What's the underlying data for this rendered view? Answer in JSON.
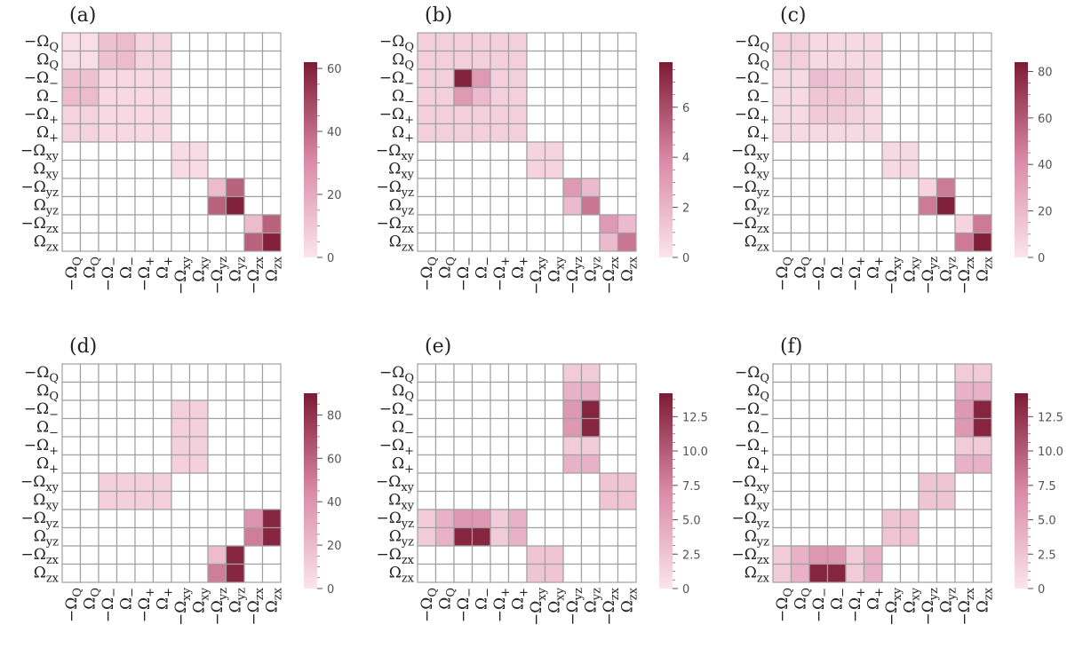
{
  "figure": {
    "colormap": {
      "low": "#fbe4ec",
      "mid": "#d98aa6",
      "high": "#7d1a34",
      "grid": "#a0a0a0"
    }
  },
  "chart_data": [
    {
      "type": "heatmap",
      "panel_label": "(a)",
      "tick_labels": [
        "−ΩQ",
        "ΩQ",
        "−Ω−",
        "Ω−",
        "−Ω+",
        "Ω+",
        "−Ωxy",
        "Ωxy",
        "−Ωyz",
        "Ωyz",
        "−Ωzx",
        "Ωzx"
      ],
      "vmin": 0,
      "vmax": 62,
      "colorbar_ticks": [
        0,
        20,
        40,
        60
      ],
      "colorbar_tick_labels": [
        "0",
        "20",
        "40",
        "60"
      ],
      "matrix": [
        [
          2,
          2,
          12,
          14,
          6,
          6,
          0,
          0,
          0,
          0,
          0,
          0
        ],
        [
          2,
          2,
          12,
          14,
          6,
          6,
          0,
          0,
          0,
          0,
          0,
          0
        ],
        [
          12,
          12,
          4,
          4,
          4,
          4,
          0,
          0,
          0,
          0,
          0,
          0
        ],
        [
          14,
          14,
          4,
          4,
          4,
          4,
          0,
          0,
          0,
          0,
          0,
          0
        ],
        [
          6,
          6,
          4,
          4,
          4,
          4,
          0,
          0,
          0,
          0,
          0,
          0
        ],
        [
          6,
          6,
          4,
          4,
          4,
          4,
          0,
          0,
          0,
          0,
          0,
          0
        ],
        [
          0,
          0,
          0,
          0,
          0,
          0,
          3,
          3,
          0,
          0,
          0,
          0
        ],
        [
          0,
          0,
          0,
          0,
          0,
          0,
          3,
          3,
          0,
          0,
          0,
          0
        ],
        [
          0,
          0,
          0,
          0,
          0,
          0,
          0,
          0,
          14,
          42,
          0,
          0
        ],
        [
          0,
          0,
          0,
          0,
          0,
          0,
          0,
          0,
          42,
          60,
          0,
          0
        ],
        [
          0,
          0,
          0,
          0,
          0,
          0,
          0,
          0,
          0,
          0,
          14,
          42
        ],
        [
          0,
          0,
          0,
          0,
          0,
          0,
          0,
          0,
          0,
          0,
          42,
          60
        ]
      ]
    },
    {
      "type": "heatmap",
      "panel_label": "(b)",
      "tick_labels": [
        "−ΩQ",
        "ΩQ",
        "−Ω−",
        "Ω−",
        "−Ω+",
        "Ω+",
        "−Ωxy",
        "Ωxy",
        "−Ωyz",
        "Ωyz",
        "−Ωzx",
        "Ωzx"
      ],
      "vmin": 0,
      "vmax": 7.8,
      "colorbar_ticks": [
        0,
        2,
        4,
        6
      ],
      "colorbar_tick_labels": [
        "0",
        "2",
        "4",
        "6"
      ],
      "matrix": [
        [
          0.9,
          0.9,
          0.9,
          0.9,
          0.9,
          0.9,
          0,
          0,
          0,
          0,
          0,
          0
        ],
        [
          0.9,
          0.9,
          0.9,
          0.9,
          0.9,
          0.9,
          0,
          0,
          0,
          0,
          0,
          0
        ],
        [
          0.9,
          0.9,
          7.5,
          3.2,
          0.9,
          0.9,
          0,
          0,
          0,
          0,
          0,
          0
        ],
        [
          0.9,
          0.9,
          3.2,
          1.8,
          0.9,
          0.9,
          0,
          0,
          0,
          0,
          0,
          0
        ],
        [
          0.9,
          0.9,
          0.9,
          0.9,
          0.9,
          0.9,
          0,
          0,
          0,
          0,
          0,
          0
        ],
        [
          0.9,
          0.9,
          0.9,
          0.9,
          0.9,
          0.9,
          0,
          0,
          0,
          0,
          0,
          0
        ],
        [
          0,
          0,
          0,
          0,
          0,
          0,
          0.7,
          0.7,
          0,
          0,
          0,
          0
        ],
        [
          0,
          0,
          0,
          0,
          0,
          0,
          0.7,
          0.7,
          0,
          0,
          0,
          0
        ],
        [
          0,
          0,
          0,
          0,
          0,
          0,
          0,
          0,
          3.2,
          1.8,
          0,
          0
        ],
        [
          0,
          0,
          0,
          0,
          0,
          0,
          0,
          0,
          1.8,
          4.6,
          0,
          0
        ],
        [
          0,
          0,
          0,
          0,
          0,
          0,
          0,
          0,
          0,
          0,
          3.2,
          1.8
        ],
        [
          0,
          0,
          0,
          0,
          0,
          0,
          0,
          0,
          0,
          0,
          1.8,
          4.6
        ]
      ]
    },
    {
      "type": "heatmap",
      "panel_label": "(c)",
      "tick_labels": [
        "−ΩQ",
        "ΩQ",
        "−Ω−",
        "Ω−",
        "−Ω+",
        "Ω+",
        "−Ωxy",
        "Ωxy",
        "−Ωyz",
        "Ωyz",
        "−Ωzx",
        "Ωzx"
      ],
      "vmin": 0,
      "vmax": 84,
      "colorbar_ticks": [
        0,
        20,
        40,
        60,
        80
      ],
      "colorbar_tick_labels": [
        "0",
        "20",
        "40",
        "60",
        "80"
      ],
      "matrix": [
        [
          10,
          10,
          5,
          5,
          5,
          5,
          0,
          0,
          0,
          0,
          0,
          0
        ],
        [
          10,
          10,
          5,
          5,
          5,
          5,
          0,
          0,
          0,
          0,
          0,
          0
        ],
        [
          5,
          5,
          18,
          14,
          12,
          5,
          0,
          0,
          0,
          0,
          0,
          0
        ],
        [
          5,
          5,
          14,
          14,
          12,
          5,
          0,
          0,
          0,
          0,
          0,
          0
        ],
        [
          5,
          5,
          12,
          12,
          9,
          5,
          0,
          0,
          0,
          0,
          0,
          0
        ],
        [
          5,
          5,
          5,
          5,
          5,
          5,
          0,
          0,
          0,
          0,
          0,
          0
        ],
        [
          0,
          0,
          0,
          0,
          0,
          0,
          5,
          5,
          0,
          0,
          0,
          0
        ],
        [
          0,
          0,
          0,
          0,
          0,
          0,
          5,
          5,
          0,
          0,
          0,
          0
        ],
        [
          0,
          0,
          0,
          0,
          0,
          0,
          0,
          0,
          8,
          48,
          0,
          0
        ],
        [
          0,
          0,
          0,
          0,
          0,
          0,
          0,
          0,
          48,
          82,
          0,
          0
        ],
        [
          0,
          0,
          0,
          0,
          0,
          0,
          0,
          0,
          0,
          0,
          8,
          48
        ],
        [
          0,
          0,
          0,
          0,
          0,
          0,
          0,
          0,
          0,
          0,
          48,
          82
        ]
      ]
    },
    {
      "type": "heatmap",
      "panel_label": "(d)",
      "tick_labels": [
        "−ΩQ",
        "ΩQ",
        "−Ω−",
        "Ω−",
        "−Ω+",
        "Ω+",
        "−Ωxy",
        "Ωxy",
        "−Ωyz",
        "Ωyz",
        "−Ωzx",
        "Ωzx"
      ],
      "vmin": 0,
      "vmax": 90,
      "colorbar_ticks": [
        0,
        20,
        40,
        60,
        80
      ],
      "colorbar_tick_labels": [
        "0",
        "20",
        "40",
        "60",
        "80"
      ],
      "matrix": [
        [
          0,
          0,
          0,
          0,
          0,
          0,
          0,
          0,
          0,
          0,
          0,
          0
        ],
        [
          0,
          0,
          0,
          0,
          0,
          0,
          0,
          0,
          0,
          0,
          0,
          0
        ],
        [
          0,
          0,
          0,
          0,
          0,
          0,
          10,
          10,
          0,
          0,
          0,
          0
        ],
        [
          0,
          0,
          0,
          0,
          0,
          0,
          10,
          10,
          0,
          0,
          0,
          0
        ],
        [
          0,
          0,
          0,
          0,
          0,
          0,
          10,
          10,
          0,
          0,
          0,
          0
        ],
        [
          0,
          0,
          0,
          0,
          0,
          0,
          10,
          10,
          0,
          0,
          0,
          0
        ],
        [
          0,
          0,
          10,
          10,
          10,
          10,
          0,
          0,
          0,
          0,
          0,
          0
        ],
        [
          0,
          0,
          10,
          10,
          10,
          10,
          0,
          0,
          0,
          0,
          0,
          0
        ],
        [
          0,
          0,
          0,
          0,
          0,
          0,
          0,
          0,
          0,
          0,
          40,
          85
        ],
        [
          0,
          0,
          0,
          0,
          0,
          0,
          0,
          0,
          0,
          0,
          50,
          85
        ],
        [
          0,
          0,
          0,
          0,
          0,
          0,
          0,
          0,
          20,
          85,
          0,
          0
        ],
        [
          0,
          0,
          0,
          0,
          0,
          0,
          0,
          0,
          50,
          85,
          0,
          0
        ]
      ]
    },
    {
      "type": "heatmap",
      "panel_label": "(e)",
      "tick_labels": [
        "−ΩQ",
        "ΩQ",
        "−Ω−",
        "Ω−",
        "−Ω+",
        "Ω+",
        "−Ωxy",
        "Ωxy",
        "−Ωyz",
        "Ωyz",
        "−Ωzx",
        "Ωzx"
      ],
      "vmin": 0,
      "vmax": 14.2,
      "colorbar_ticks": [
        0,
        2.5,
        5,
        7.5,
        10,
        12.5
      ],
      "colorbar_tick_labels": [
        "0",
        "2.5",
        "5.0",
        "7.5",
        "10.0",
        "12.5"
      ],
      "matrix": [
        [
          0,
          0,
          0,
          0,
          0,
          0,
          0,
          0,
          2,
          2,
          0,
          0
        ],
        [
          0,
          0,
          0,
          0,
          0,
          0,
          0,
          0,
          4,
          4,
          0,
          0
        ],
        [
          0,
          0,
          0,
          0,
          0,
          0,
          0,
          0,
          6,
          13.5,
          0,
          0
        ],
        [
          0,
          0,
          0,
          0,
          0,
          0,
          0,
          0,
          6,
          13.5,
          0,
          0
        ],
        [
          0,
          0,
          0,
          0,
          0,
          0,
          0,
          0,
          2,
          2,
          0,
          0
        ],
        [
          0,
          0,
          0,
          0,
          0,
          0,
          0,
          0,
          4,
          4,
          0,
          0
        ],
        [
          0,
          0,
          0,
          0,
          0,
          0,
          0,
          0,
          0,
          0,
          2.5,
          2.5
        ],
        [
          0,
          0,
          0,
          0,
          0,
          0,
          0,
          0,
          0,
          0,
          2.5,
          2.5
        ],
        [
          2,
          4,
          6,
          6,
          2,
          4,
          0,
          0,
          0,
          0,
          0,
          0
        ],
        [
          2,
          4,
          13.5,
          13.5,
          2,
          4,
          0,
          0,
          0,
          0,
          0,
          0
        ],
        [
          0,
          0,
          0,
          0,
          0,
          0,
          2.5,
          2.5,
          0,
          0,
          0,
          0
        ],
        [
          0,
          0,
          0,
          0,
          0,
          0,
          2.5,
          2.5,
          0,
          0,
          0,
          0
        ]
      ]
    },
    {
      "type": "heatmap",
      "panel_label": "(f)",
      "tick_labels": [
        "−ΩQ",
        "ΩQ",
        "−Ω−",
        "Ω−",
        "−Ω+",
        "Ω+",
        "−Ωxy",
        "Ωxy",
        "−Ωyz",
        "Ωyz",
        "−Ωzx",
        "Ωzx"
      ],
      "vmin": 0,
      "vmax": 14.2,
      "colorbar_ticks": [
        0,
        2.5,
        5,
        7.5,
        10,
        12.5
      ],
      "colorbar_tick_labels": [
        "0",
        "2.5",
        "5.0",
        "7.5",
        "10.0",
        "12.5"
      ],
      "matrix": [
        [
          0,
          0,
          0,
          0,
          0,
          0,
          0,
          0,
          0,
          0,
          2,
          2
        ],
        [
          0,
          0,
          0,
          0,
          0,
          0,
          0,
          0,
          0,
          0,
          4,
          4
        ],
        [
          0,
          0,
          0,
          0,
          0,
          0,
          0,
          0,
          0,
          0,
          6,
          13.5
        ],
        [
          0,
          0,
          0,
          0,
          0,
          0,
          0,
          0,
          0,
          0,
          6,
          13.5
        ],
        [
          0,
          0,
          0,
          0,
          0,
          0,
          0,
          0,
          0,
          0,
          2,
          2
        ],
        [
          0,
          0,
          0,
          0,
          0,
          0,
          0,
          0,
          0,
          0,
          4,
          4
        ],
        [
          0,
          0,
          0,
          0,
          0,
          0,
          0,
          0,
          2.5,
          2.5,
          0,
          0
        ],
        [
          0,
          0,
          0,
          0,
          0,
          0,
          0,
          0,
          2.5,
          2.5,
          0,
          0
        ],
        [
          0,
          0,
          0,
          0,
          0,
          0,
          2.5,
          2.5,
          0,
          0,
          0,
          0
        ],
        [
          0,
          0,
          0,
          0,
          0,
          0,
          2.5,
          2.5,
          0,
          0,
          0,
          0
        ],
        [
          2,
          4,
          6,
          6,
          2,
          4,
          0,
          0,
          0,
          0,
          0,
          0
        ],
        [
          2,
          4,
          13.5,
          13.5,
          2,
          4,
          0,
          0,
          0,
          0,
          0,
          0
        ]
      ]
    }
  ]
}
